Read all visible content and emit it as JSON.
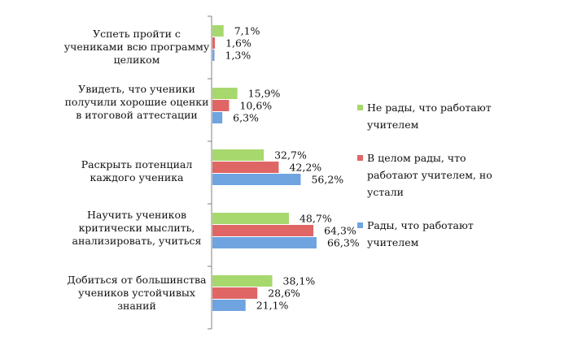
{
  "chart_data": {
    "type": "bar",
    "orientation": "horizontal",
    "categories": [
      "Успеть пройти с учениками всю программу целиком",
      "Увидеть, что ученики получили хорошие оценки в итоговой аттестации",
      "Раскрыть потенциал каждого ученика",
      "Научить учеников критически мыслить, анализировать, учиться",
      "Добиться от большинства учеников устойчивых знаний"
    ],
    "series": [
      {
        "name": "Не рады, что работают учителем",
        "color": "#a7d86e",
        "values": [
          7.1,
          15.9,
          32.7,
          48.7,
          38.1
        ],
        "labels": [
          "7,1%",
          "15,9%",
          "32,7%",
          "48,7%",
          "38,1%"
        ]
      },
      {
        "name": "В целом рады, что работают учителем, но устали",
        "color": "#e06666",
        "values": [
          1.6,
          10.6,
          42.2,
          64.3,
          28.6
        ],
        "labels": [
          "1,6%",
          "10,6%",
          "42,2%",
          "64,3%",
          "28,6%"
        ]
      },
      {
        "name": "Рады, что работают учителем",
        "color": "#6fa4e0",
        "values": [
          1.3,
          6.3,
          56.2,
          66.3,
          21.1
        ],
        "labels": [
          "1,3%",
          "6,3%",
          "56,2%",
          "66,3%",
          "21,1%"
        ]
      }
    ],
    "xlim": [
      0,
      100
    ],
    "grid": false,
    "legend_position": "right"
  }
}
